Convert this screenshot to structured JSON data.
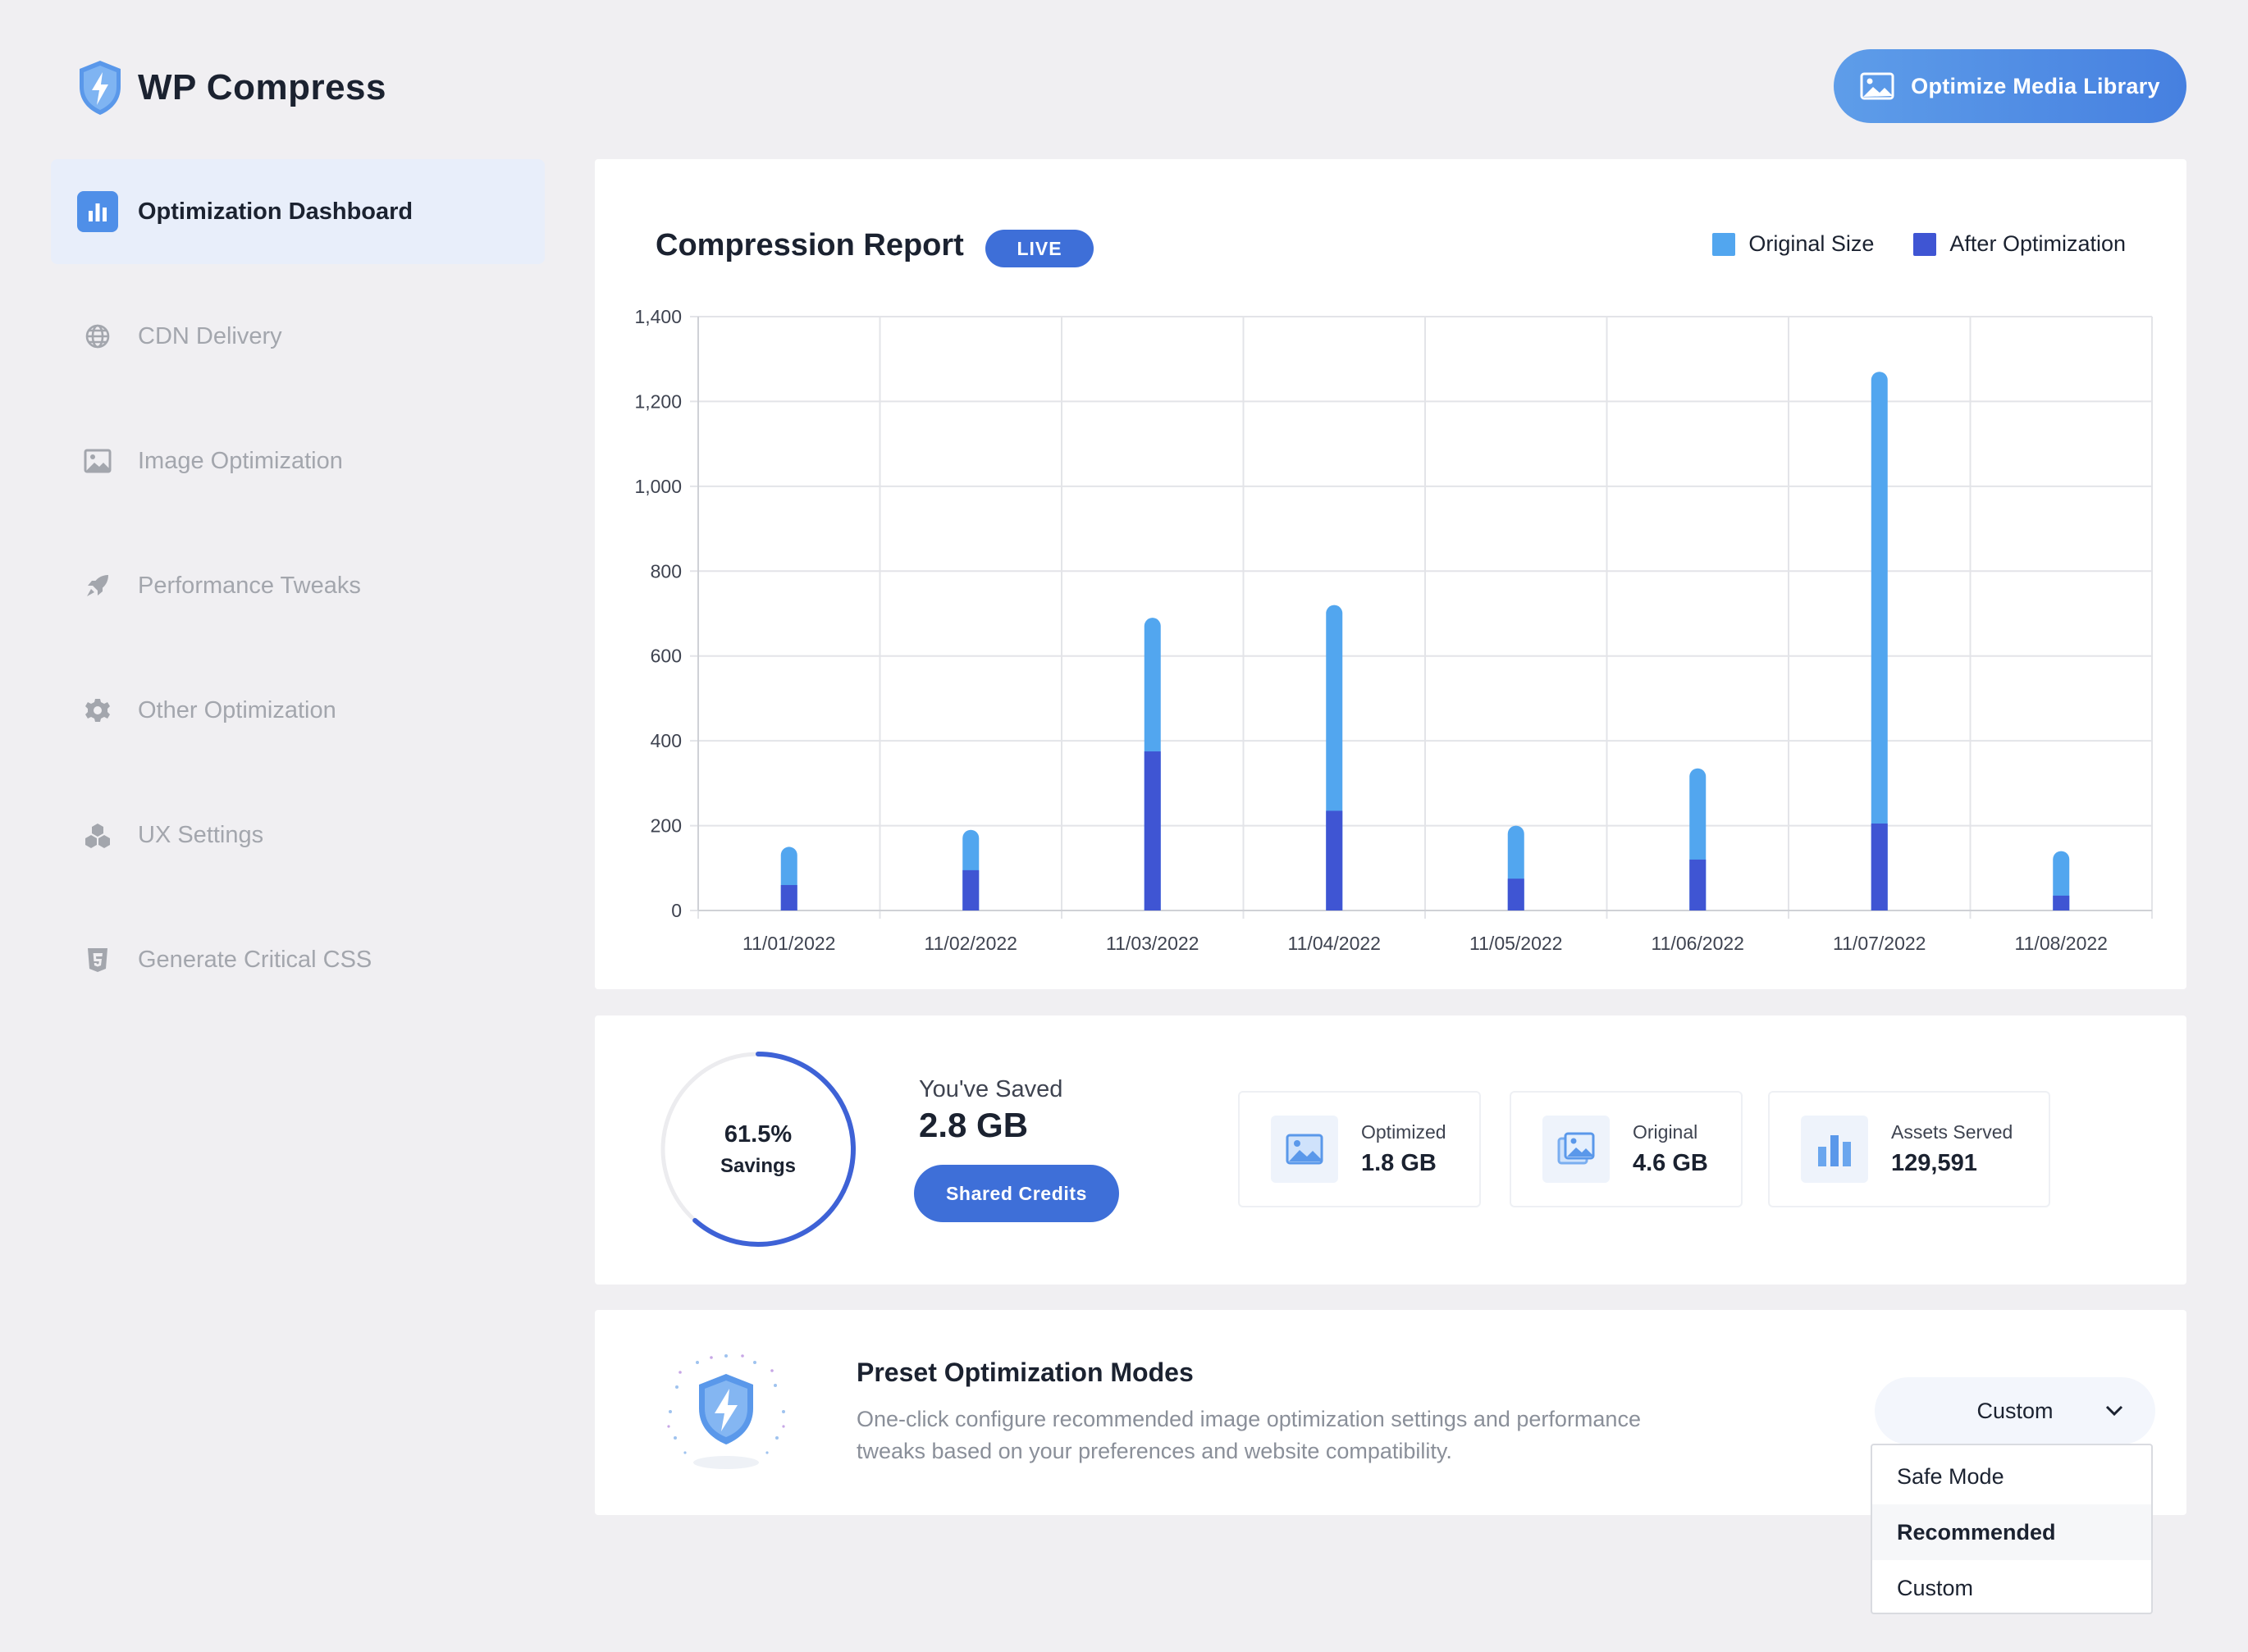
{
  "brand": {
    "name": "WP Compress",
    "icon": "shield-bolt-icon"
  },
  "header": {
    "optimize_button": "Optimize Media Library",
    "optimize_icon": "image-icon"
  },
  "sidebar": {
    "items": [
      {
        "label": "Optimization Dashboard",
        "icon": "bar-chart-icon",
        "active": true
      },
      {
        "label": "CDN Delivery",
        "icon": "globe-icon",
        "active": false
      },
      {
        "label": "Image Optimization",
        "icon": "image-icon",
        "active": false
      },
      {
        "label": "Performance Tweaks",
        "icon": "rocket-icon",
        "active": false
      },
      {
        "label": "Other Optimization",
        "icon": "gear-icon",
        "active": false
      },
      {
        "label": "UX Settings",
        "icon": "cubes-icon",
        "active": false
      },
      {
        "label": "Generate Critical CSS",
        "icon": "css3-icon",
        "active": false
      }
    ]
  },
  "report": {
    "title": "Compression Report",
    "badge": "LIVE",
    "legend": {
      "original": "Original Size",
      "after": "After Optimization"
    }
  },
  "colors": {
    "original": "#52a6ef",
    "after": "#3f55d3",
    "accent": "#3e6fd8",
    "grid": "#e3e4e8"
  },
  "chart_data": {
    "type": "bar",
    "stacked": true,
    "categories": [
      "11/01/2022",
      "11/02/2022",
      "11/03/2022",
      "11/04/2022",
      "11/05/2022",
      "11/06/2022",
      "11/07/2022",
      "11/08/2022"
    ],
    "series": [
      {
        "name": "Original Size",
        "values": [
          150,
          190,
          690,
          720,
          200,
          335,
          1270,
          140
        ]
      },
      {
        "name": "After Optimization",
        "values": [
          60,
          95,
          375,
          235,
          75,
          120,
          205,
          35
        ]
      }
    ],
    "ylim": [
      0,
      1400
    ],
    "yticks": [
      "0",
      "200",
      "400",
      "600",
      "800",
      "1,000",
      "1,200",
      "1,400"
    ],
    "grid": true,
    "legend_position": "top-right"
  },
  "savings": {
    "percent": "61.5%",
    "percent_value": 0.615,
    "percent_label": "Savings",
    "saved_label": "You've Saved",
    "saved_value": "2.8 GB",
    "credits_button": "Shared Credits",
    "stats": [
      {
        "label": "Optimized",
        "value": "1.8 GB",
        "icon": "image-icon"
      },
      {
        "label": "Original",
        "value": "4.6 GB",
        "icon": "images-icon"
      },
      {
        "label": "Assets Served",
        "value": "129,591",
        "icon": "bar-chart-icon"
      }
    ]
  },
  "preset": {
    "title": "Preset Optimization Modes",
    "description": "One-click configure recommended image optimization settings and performance tweaks based on your preferences and website compatibility.",
    "selected": "Custom",
    "options": [
      "Safe Mode",
      "Recommended",
      "Custom"
    ],
    "highlighted": "Recommended"
  }
}
